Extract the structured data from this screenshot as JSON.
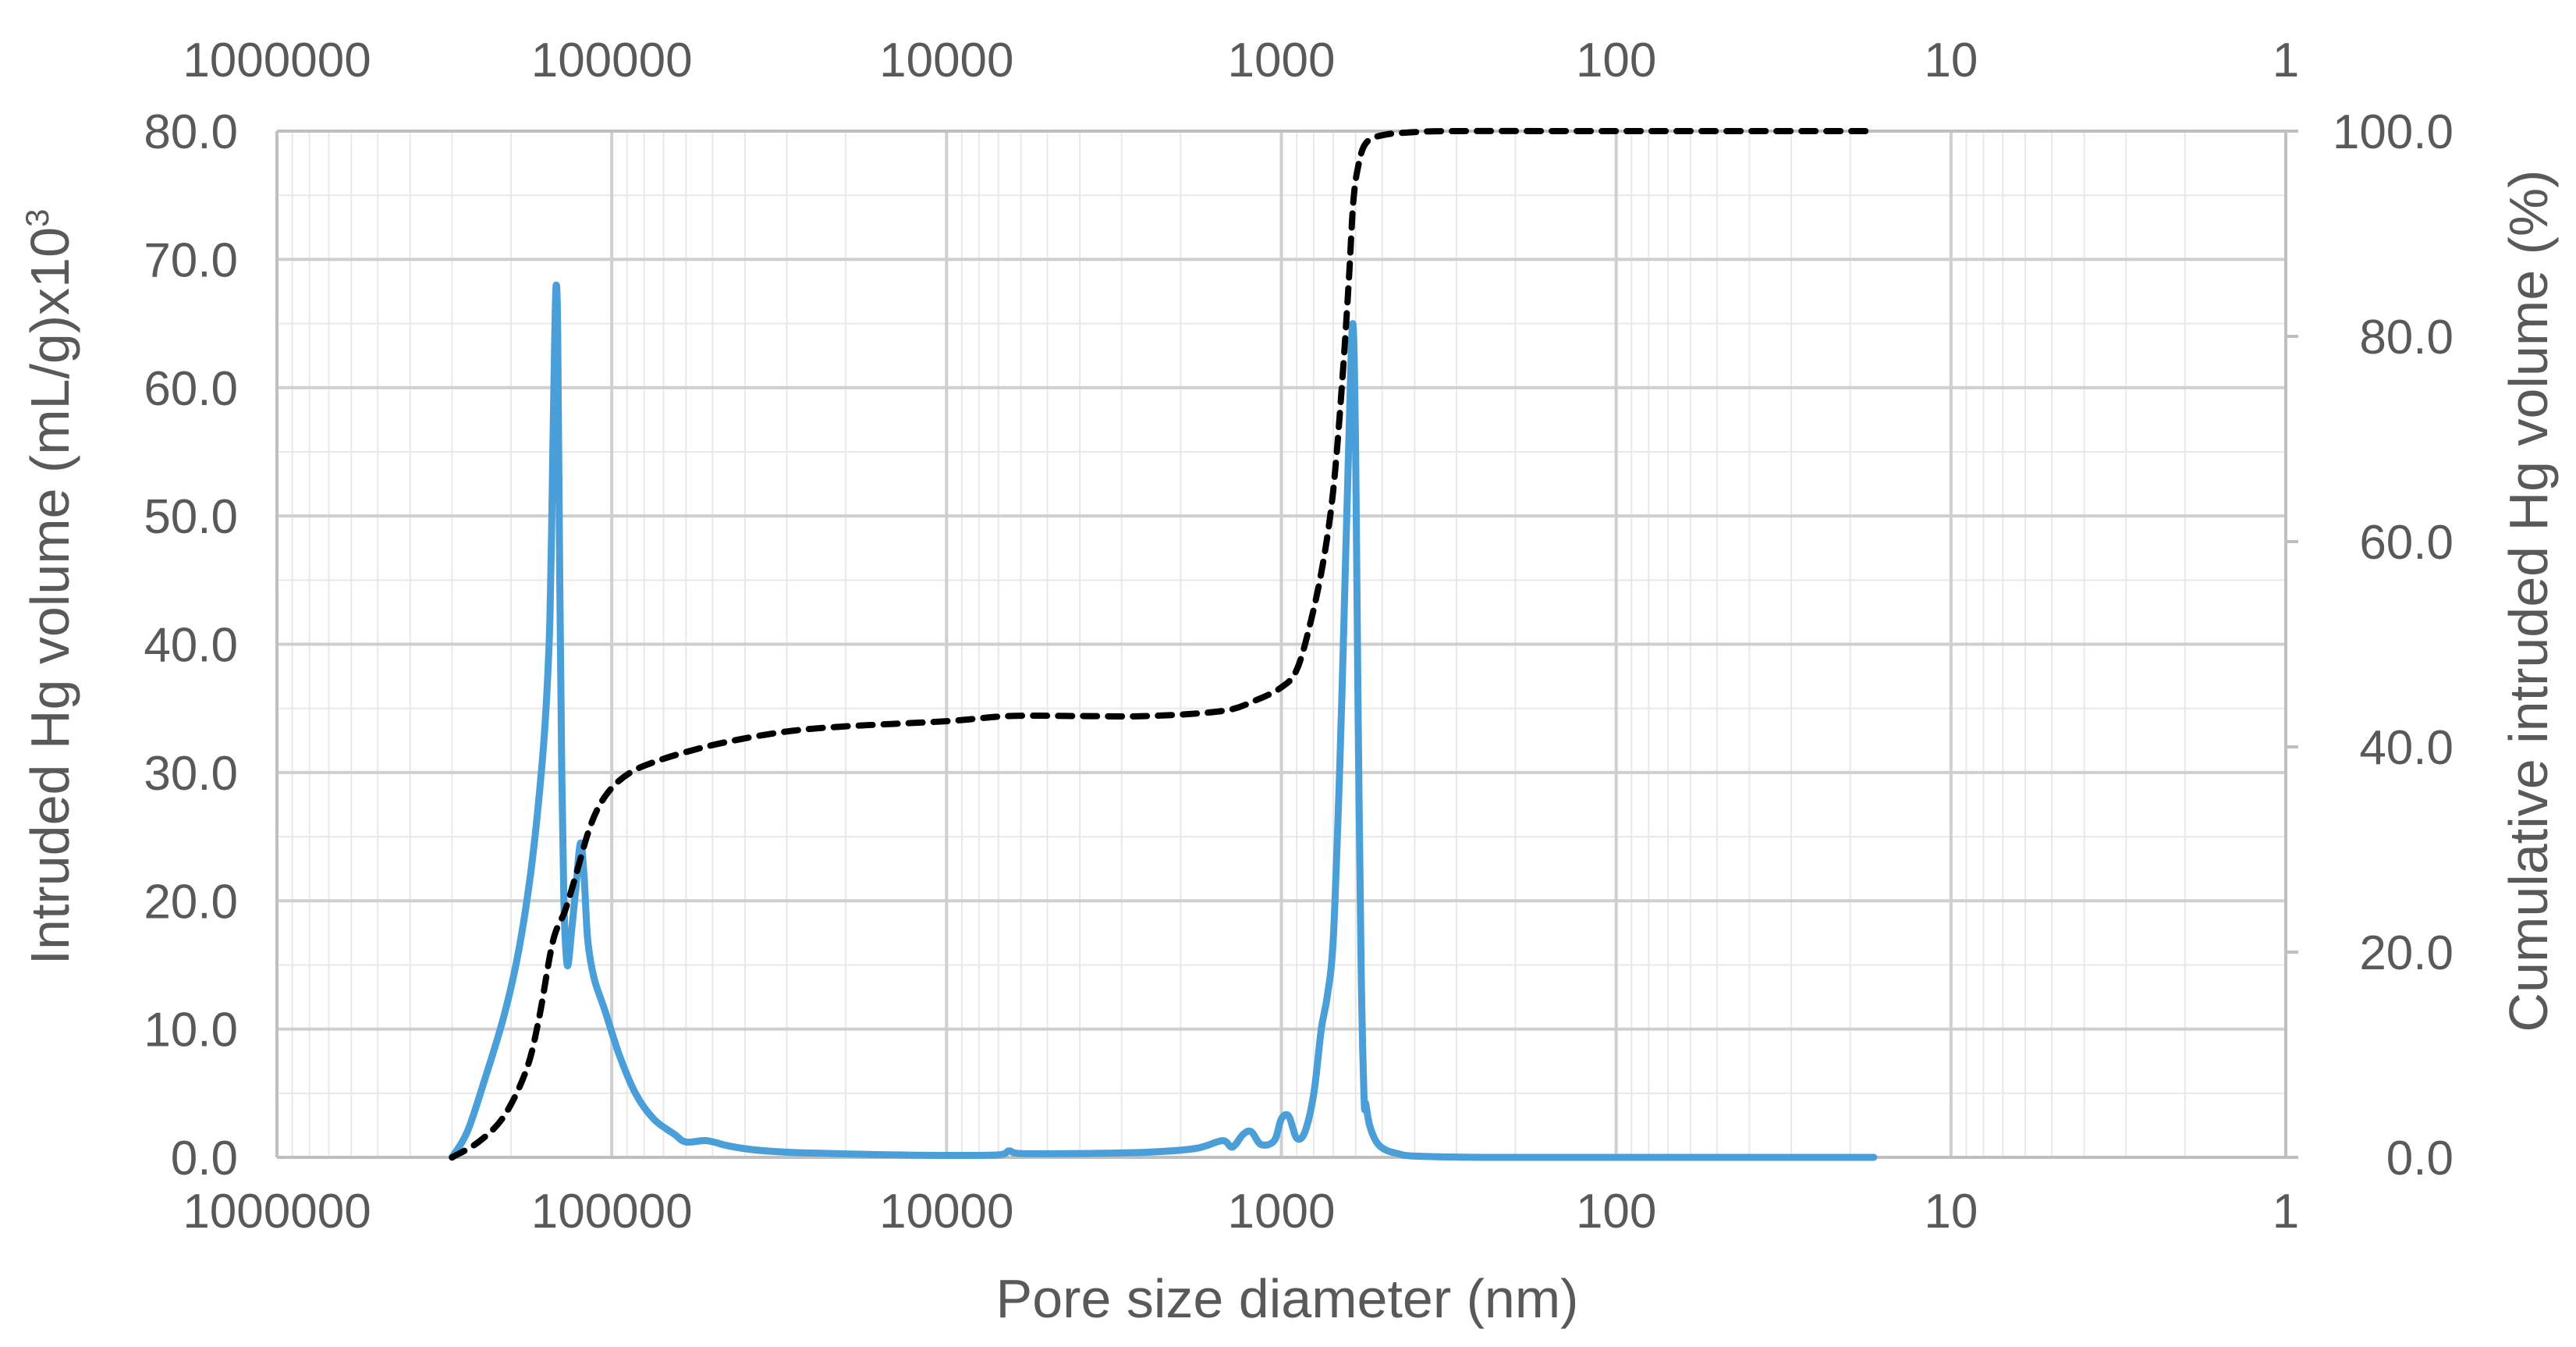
{
  "chart_data": {
    "type": "line",
    "x_scale": "log",
    "x_reversed": true,
    "xlabel": "Pore size diameter (nm)",
    "xlim": [
      1000000,
      1
    ],
    "x_ticks": [
      "1000000",
      "100000",
      "10000",
      "1000",
      "100",
      "10",
      "1"
    ],
    "ylabel": "Intruded Hg volume (mL/g)x10",
    "ylabel_superscript": "3",
    "ylim": [
      0,
      80
    ],
    "y_ticks": [
      "0.0",
      "10.0",
      "20.0",
      "30.0",
      "40.0",
      "50.0",
      "60.0",
      "70.0",
      "80.0"
    ],
    "y2label": "Cumulative intruded Hg volume (%)",
    "y2lim": [
      0,
      100
    ],
    "y2_ticks": [
      "0.0",
      "20.0",
      "40.0",
      "60.0",
      "80.0",
      "100.0"
    ],
    "grid": true,
    "minor_grid": true,
    "series": [
      {
        "axis": "left",
        "style": "solid",
        "color": "#4a9fd8",
        "points": [
          [
            300000,
            0
          ],
          [
            270000,
            2
          ],
          [
            240000,
            6
          ],
          [
            210000,
            11
          ],
          [
            190000,
            16
          ],
          [
            175000,
            22
          ],
          [
            165000,
            28
          ],
          [
            158000,
            34
          ],
          [
            153000,
            42
          ],
          [
            150000,
            55
          ],
          [
            148000,
            64
          ],
          [
            146500,
            68
          ],
          [
            145000,
            64
          ],
          [
            143000,
            45
          ],
          [
            141000,
            30
          ],
          [
            139000,
            20
          ],
          [
            137000,
            16
          ],
          [
            135000,
            15
          ],
          [
            132000,
            17.5
          ],
          [
            128000,
            21
          ],
          [
            124000,
            24.5
          ],
          [
            121000,
            22
          ],
          [
            118000,
            17
          ],
          [
            113000,
            14
          ],
          [
            105000,
            11.5
          ],
          [
            95000,
            8
          ],
          [
            85000,
            5
          ],
          [
            75000,
            3
          ],
          [
            65000,
            1.8
          ],
          [
            60000,
            1.2
          ],
          [
            52000,
            1.3
          ],
          [
            45000,
            0.9
          ],
          [
            38000,
            0.6
          ],
          [
            30000,
            0.4
          ],
          [
            22000,
            0.3
          ],
          [
            15000,
            0.2
          ],
          [
            10000,
            0.15
          ],
          [
            7000,
            0.2
          ],
          [
            6500,
            0.5
          ],
          [
            6000,
            0.3
          ],
          [
            4000,
            0.3
          ],
          [
            2500,
            0.4
          ],
          [
            1800,
            0.7
          ],
          [
            1500,
            1.3
          ],
          [
            1400,
            0.8
          ],
          [
            1300,
            1.8
          ],
          [
            1230,
            2.0
          ],
          [
            1150,
            1.0
          ],
          [
            1050,
            1.3
          ],
          [
            1000,
            3.0
          ],
          [
            950,
            3.2
          ],
          [
            900,
            1.5
          ],
          [
            850,
            2.0
          ],
          [
            800,
            5.0
          ],
          [
            760,
            10
          ],
          [
            730,
            12.5
          ],
          [
            700,
            17
          ],
          [
            670,
            30
          ],
          [
            650,
            42
          ],
          [
            630,
            55
          ],
          [
            612,
            65
          ],
          [
            600,
            55
          ],
          [
            590,
            35
          ],
          [
            578,
            15
          ],
          [
            566,
            4.5
          ],
          [
            560,
            4.2
          ],
          [
            545,
            2.5
          ],
          [
            520,
            1.2
          ],
          [
            490,
            0.6
          ],
          [
            450,
            0.3
          ],
          [
            400,
            0.1
          ],
          [
            250,
            0
          ],
          [
            100,
            0
          ],
          [
            17,
            0
          ]
        ]
      },
      {
        "axis": "right",
        "style": "dashed",
        "color": "#000000",
        "points": [
          [
            300000,
            0
          ],
          [
            250000,
            1.5
          ],
          [
            210000,
            4
          ],
          [
            180000,
            8.5
          ],
          [
            165000,
            13.5
          ],
          [
            150000,
            21
          ],
          [
            138000,
            24
          ],
          [
            128000,
            27.5
          ],
          [
            118000,
            31.5
          ],
          [
            110000,
            34
          ],
          [
            100000,
            36
          ],
          [
            88000,
            37.5
          ],
          [
            75000,
            38.5
          ],
          [
            60000,
            39.5
          ],
          [
            45000,
            40.5
          ],
          [
            30000,
            41.5
          ],
          [
            20000,
            42
          ],
          [
            10000,
            42.5
          ],
          [
            6500,
            43
          ],
          [
            4000,
            43
          ],
          [
            2500,
            43
          ],
          [
            1500,
            43.5
          ],
          [
            1200,
            44.5
          ],
          [
            1000,
            45.8
          ],
          [
            900,
            47.5
          ],
          [
            820,
            52
          ],
          [
            750,
            58
          ],
          [
            700,
            65
          ],
          [
            660,
            75
          ],
          [
            630,
            85
          ],
          [
            610,
            93
          ],
          [
            590,
            96.5
          ],
          [
            560,
            98.8
          ],
          [
            500,
            99.6
          ],
          [
            400,
            99.9
          ],
          [
            300,
            100
          ],
          [
            100,
            100
          ],
          [
            17,
            100
          ]
        ]
      }
    ]
  }
}
